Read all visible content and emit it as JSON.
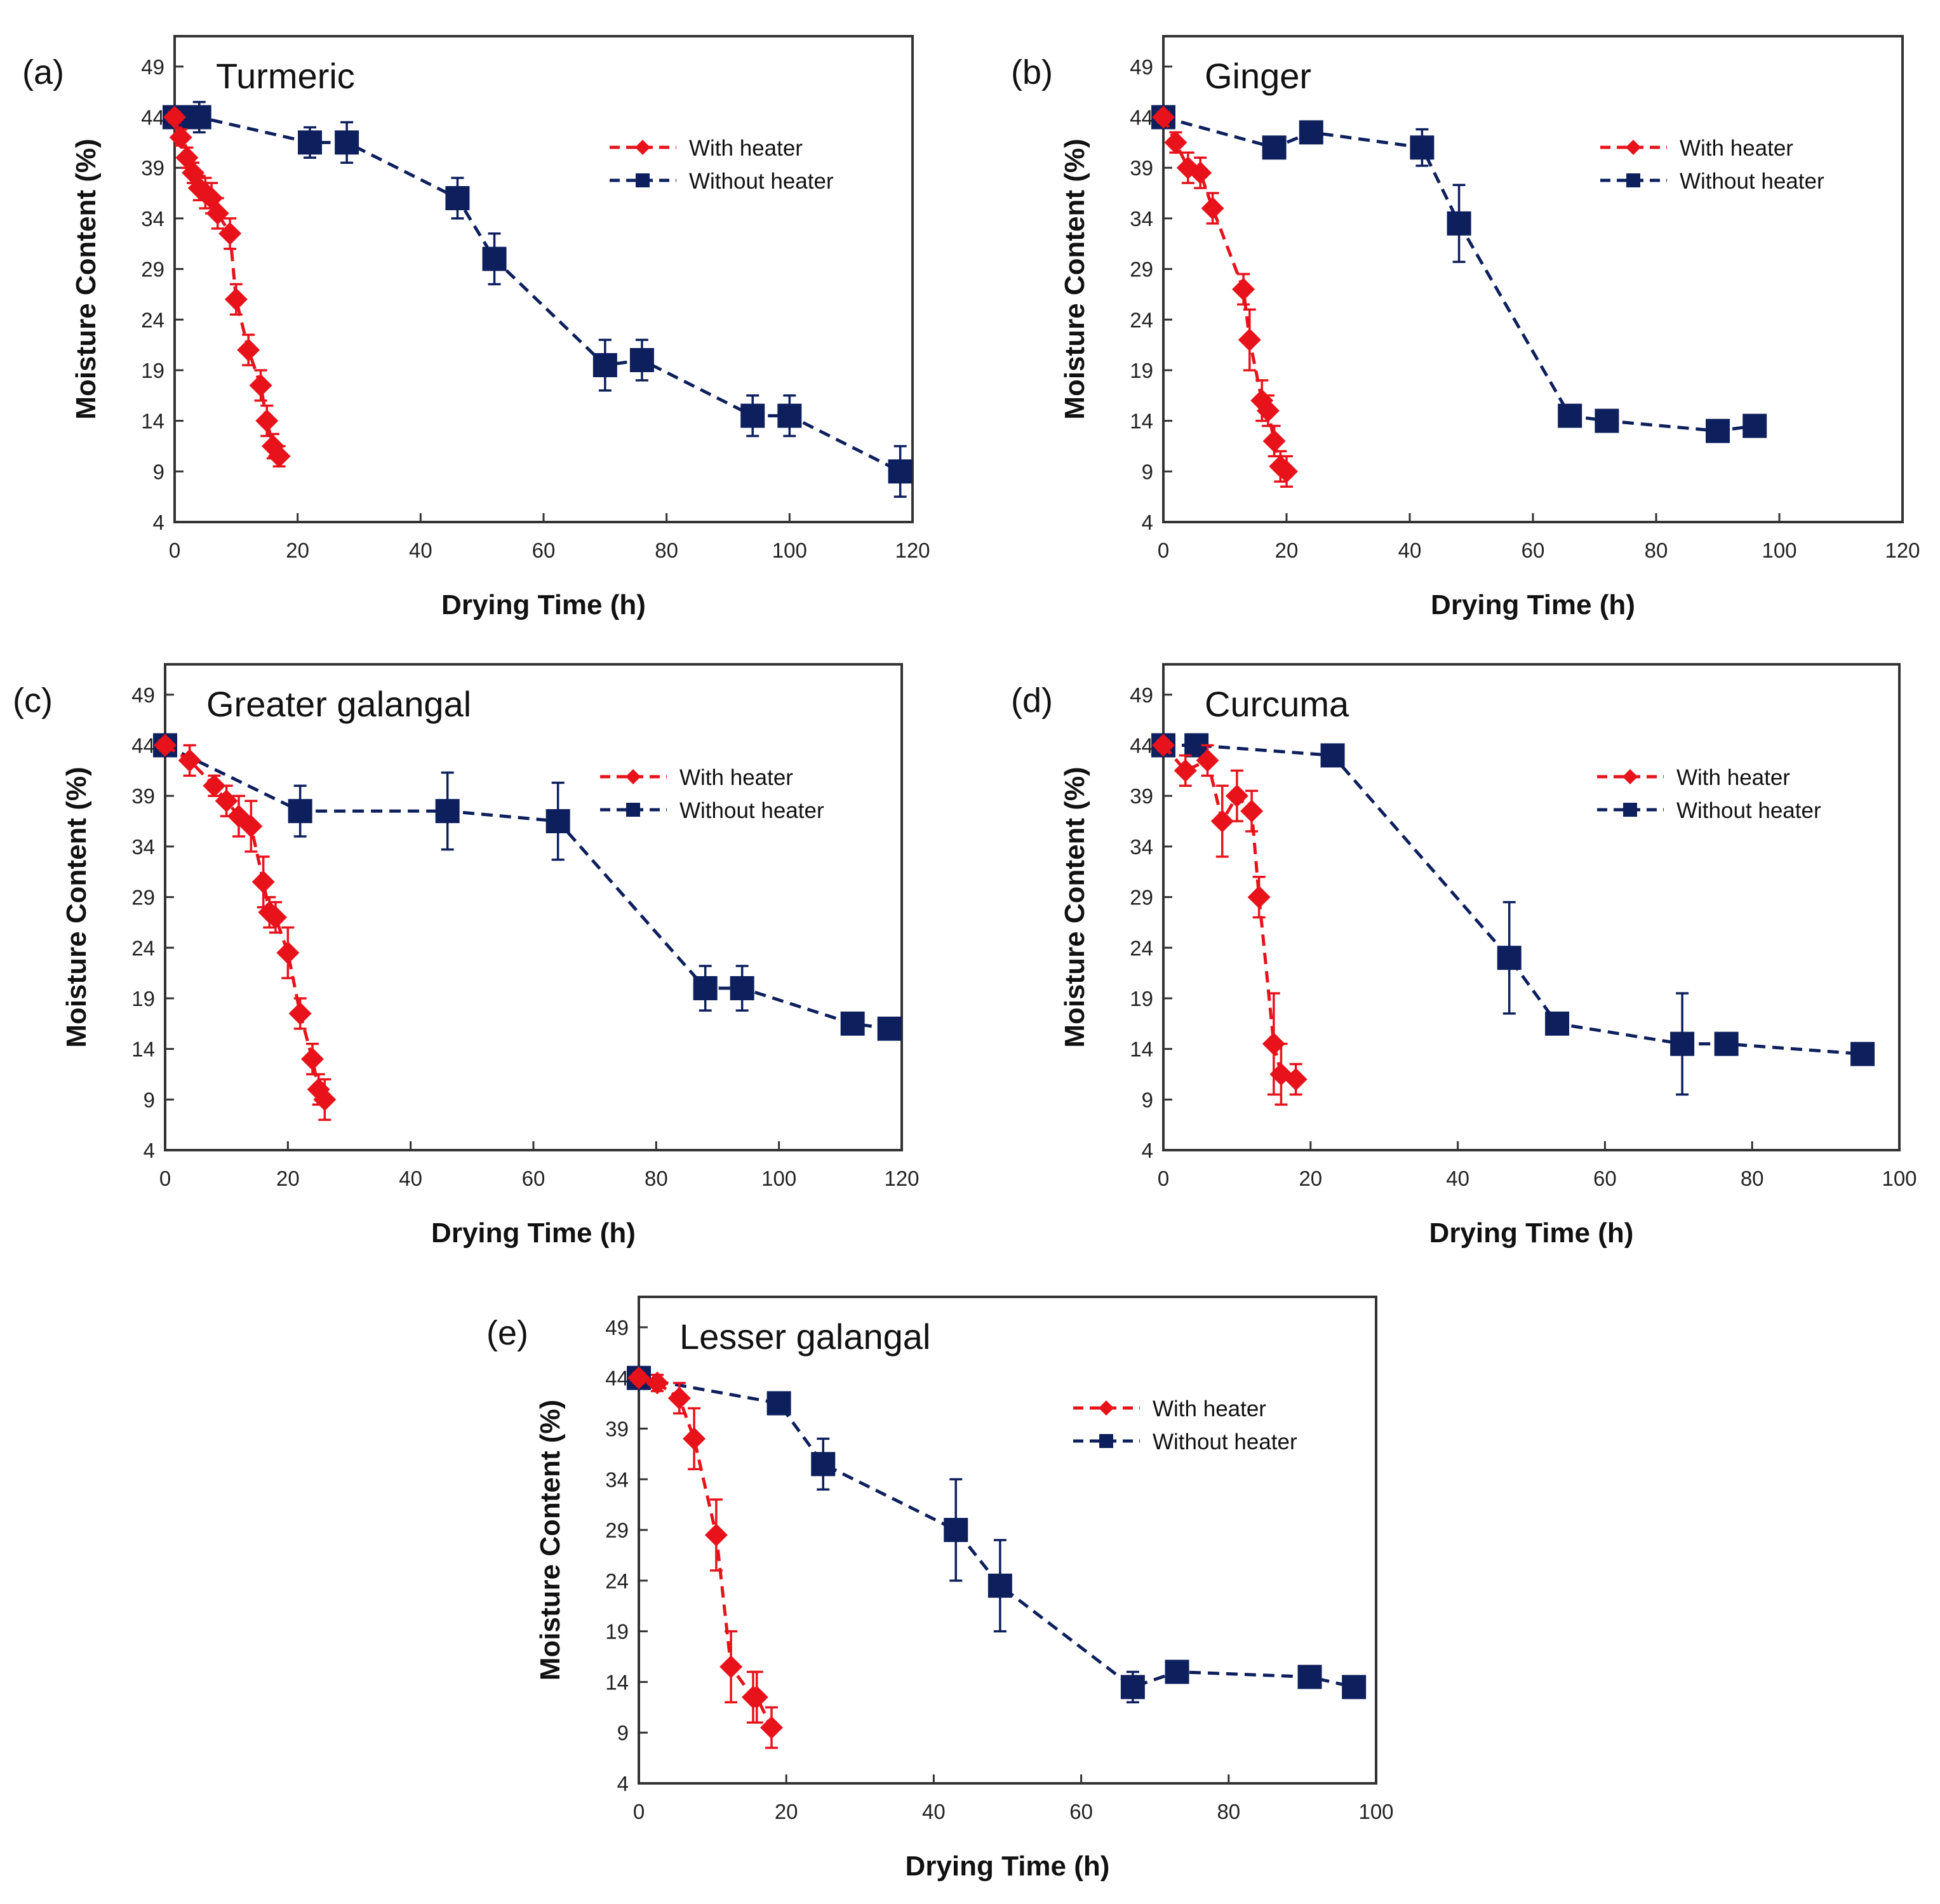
{
  "colors": {
    "with_heater": "#e8121b",
    "without_heater": "#0d1f5c",
    "frame": "#333333"
  },
  "chart_data": [
    {
      "type": "line",
      "panel_label": "(a)",
      "title": "Turmeric",
      "xlabel": "Drying Time (h)",
      "ylabel": "Moisture Content (%)",
      "xlim": [
        0,
        120
      ],
      "ylim": [
        4,
        52
      ],
      "xticks": [
        0,
        20,
        40,
        60,
        80,
        100,
        120
      ],
      "yticks": [
        4,
        9,
        14,
        19,
        24,
        29,
        34,
        39,
        44,
        49
      ],
      "legend": [
        "With heater",
        "Without heater"
      ],
      "series": [
        {
          "name": "With heater",
          "marker": "diamond",
          "line": "dashed",
          "x": [
            0,
            1,
            2,
            3,
            4,
            5,
            6,
            7,
            9,
            10,
            12,
            14,
            15,
            16,
            17
          ],
          "y": [
            44,
            42,
            40,
            38.5,
            37,
            36.5,
            36,
            34.5,
            32.5,
            26,
            21,
            17.5,
            14,
            11.5,
            10.5
          ],
          "err": [
            0.5,
            0.8,
            1,
            1,
            1.2,
            1.5,
            1.5,
            1.5,
            1.5,
            1.5,
            1.5,
            1.5,
            1.5,
            1.2,
            1
          ]
        },
        {
          "name": "Without heater",
          "marker": "square",
          "line": "dashed",
          "x": [
            0,
            2,
            4,
            22,
            28,
            46,
            52,
            70,
            76,
            94,
            100,
            118
          ],
          "y": [
            44,
            44,
            44,
            41.5,
            41.5,
            36,
            30,
            19.5,
            20,
            14.5,
            14.5,
            9
          ],
          "err": [
            1,
            1,
            1.5,
            1.5,
            2,
            2,
            2.5,
            2.5,
            2,
            2,
            2,
            2.5
          ]
        }
      ]
    },
    {
      "type": "line",
      "panel_label": "(b)",
      "title": "Ginger",
      "xlabel": "Drying Time (h)",
      "ylabel": "Moisture Content (%)",
      "xlim": [
        0,
        120
      ],
      "ylim": [
        4,
        52
      ],
      "xticks": [
        0,
        20,
        40,
        60,
        80,
        100,
        120
      ],
      "yticks": [
        4,
        9,
        14,
        19,
        24,
        29,
        34,
        39,
        44,
        49
      ],
      "legend": [
        "With heater",
        "Without heater"
      ],
      "series": [
        {
          "name": "With heater",
          "marker": "diamond",
          "line": "dashed",
          "x": [
            0,
            2,
            4,
            6,
            8,
            13,
            14,
            16,
            17,
            18,
            19,
            20
          ],
          "y": [
            44,
            41.5,
            39,
            38.5,
            35,
            27,
            22,
            16,
            15,
            12,
            9.5,
            9
          ],
          "err": [
            0.5,
            1,
            1.5,
            1.5,
            1.5,
            1.5,
            3,
            2,
            1.5,
            1.5,
            1.5,
            1.5
          ]
        },
        {
          "name": "Without heater",
          "marker": "square",
          "line": "dashed",
          "x": [
            0,
            18,
            24,
            42,
            48,
            66,
            72,
            90,
            96
          ],
          "y": [
            44,
            41,
            42.5,
            41,
            33.5,
            14.5,
            14,
            13,
            13.5
          ],
          "err": [
            0.8,
            0.8,
            0.8,
            1.8,
            3.8,
            0.8,
            0.8,
            0.8,
            0.8
          ]
        }
      ]
    },
    {
      "type": "line",
      "panel_label": "(c)",
      "title": "Greater galangal",
      "xlabel": "Drying Time (h)",
      "ylabel": "Moisture Content (%)",
      "xlim": [
        0,
        120
      ],
      "ylim": [
        4,
        52
      ],
      "xticks": [
        0,
        20,
        40,
        60,
        80,
        100,
        120
      ],
      "yticks": [
        4,
        9,
        14,
        19,
        24,
        29,
        34,
        39,
        44,
        49
      ],
      "legend": [
        "With heater",
        "Without heater"
      ],
      "series": [
        {
          "name": "With heater",
          "marker": "diamond",
          "line": "dashed",
          "x": [
            0,
            4,
            8,
            10,
            12,
            14,
            16,
            17,
            18,
            20,
            22,
            24,
            25,
            26
          ],
          "y": [
            44,
            42.5,
            40,
            38.5,
            37,
            36,
            30.5,
            27.5,
            27,
            23.5,
            17.5,
            13,
            10,
            9
          ],
          "err": [
            0.5,
            1.5,
            1,
            1.5,
            2,
            2.5,
            2.5,
            1.5,
            1.5,
            2.5,
            1.5,
            1.5,
            1.5,
            2
          ]
        },
        {
          "name": "Without heater",
          "marker": "square",
          "line": "dashed",
          "x": [
            0,
            22,
            46,
            64,
            88,
            94,
            112,
            118
          ],
          "y": [
            44,
            37.5,
            37.5,
            36.5,
            20,
            20,
            16.5,
            16
          ],
          "err": [
            0.8,
            2.5,
            3.8,
            3.8,
            2.2,
            2.2,
            0.8,
            0.8
          ]
        }
      ]
    },
    {
      "type": "line",
      "panel_label": "(d)",
      "title": "Curcuma",
      "xlabel": "Drying Time (h)",
      "ylabel": "Moisture Content (%)",
      "xlim": [
        0,
        100
      ],
      "ylim": [
        4,
        52
      ],
      "xticks": [
        0,
        20,
        40,
        60,
        80,
        100
      ],
      "yticks": [
        4,
        9,
        14,
        19,
        24,
        29,
        34,
        39,
        44,
        49
      ],
      "legend": [
        "With heater",
        "Without heater"
      ],
      "series": [
        {
          "name": "With heater",
          "marker": "diamond",
          "line": "dashed",
          "x": [
            0,
            3,
            6,
            8,
            10,
            12,
            13,
            15,
            16,
            18
          ],
          "y": [
            44,
            41.5,
            42.5,
            36.5,
            39,
            37.5,
            29,
            14.5,
            11.5,
            11
          ],
          "err": [
            0.5,
            1.5,
            1.5,
            3.5,
            2.5,
            2,
            2,
            5,
            3,
            1.5
          ]
        },
        {
          "name": "Without heater",
          "marker": "square",
          "line": "dashed",
          "x": [
            0,
            4.5,
            23,
            47,
            53.5,
            70.5,
            76.5,
            95
          ],
          "y": [
            44,
            44,
            43,
            23,
            16.5,
            14.5,
            14.5,
            13.5
          ],
          "err": [
            0.8,
            0.8,
            0.8,
            5.5,
            0.8,
            5,
            0.8,
            0.8
          ]
        }
      ]
    },
    {
      "type": "line",
      "panel_label": "(e)",
      "title": "Lesser galangal",
      "xlabel": "Drying Time (h)",
      "ylabel": "Moisture Content (%)",
      "xlim": [
        0,
        100
      ],
      "ylim": [
        4,
        52
      ],
      "xticks": [
        0,
        20,
        40,
        60,
        80,
        100
      ],
      "yticks": [
        4,
        9,
        14,
        19,
        24,
        29,
        34,
        39,
        44,
        49
      ],
      "legend": [
        "With heater",
        "Without heater"
      ],
      "series": [
        {
          "name": "With heater",
          "marker": "diamond",
          "line": "dashed",
          "x": [
            0,
            2.5,
            5.5,
            7.5,
            10.5,
            12.5,
            15.5,
            16,
            18
          ],
          "y": [
            44,
            43.5,
            42,
            38,
            28.5,
            15.5,
            12.5,
            12.5,
            9.5
          ],
          "err": [
            0.5,
            0.8,
            1.5,
            3,
            3.5,
            3.5,
            2.5,
            2.5,
            2
          ]
        },
        {
          "name": "Without heater",
          "marker": "square",
          "line": "dashed",
          "x": [
            0,
            19,
            25,
            43,
            49,
            67,
            73,
            91,
            97
          ],
          "y": [
            44,
            41.5,
            35.5,
            29,
            23.5,
            13.5,
            15,
            14.5,
            13.5
          ],
          "err": [
            0.8,
            0.8,
            2.5,
            5,
            4.5,
            1.5,
            1,
            0.8,
            0.8
          ]
        }
      ]
    }
  ]
}
